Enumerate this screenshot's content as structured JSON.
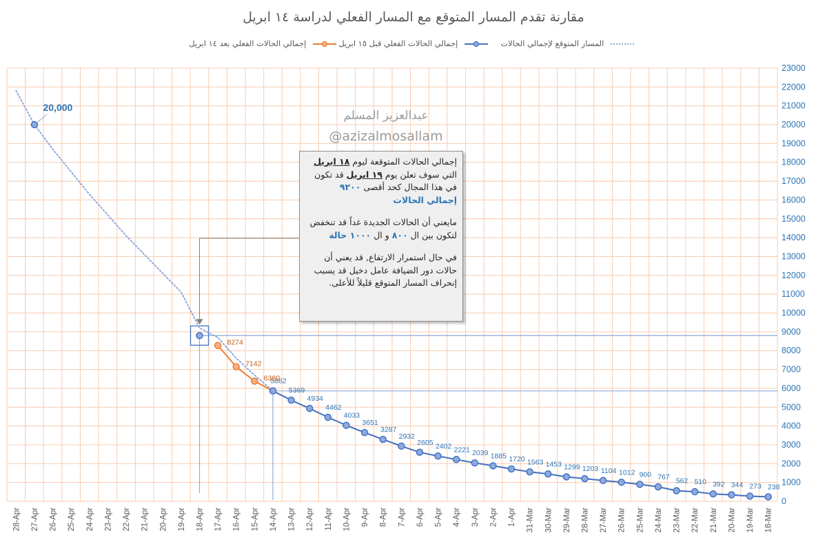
{
  "chart_data": {
    "type": "line",
    "title": "مقارنة تقدم المسار المتوقع مع المسار الفعلي لدراسة ١٤ ابريل",
    "categories": [
      "28-Apr",
      "27-Apr",
      "26-Apr",
      "25-Apr",
      "24-Apr",
      "23-Apr",
      "22-Apr",
      "21-Apr",
      "20-Apr",
      "19-Apr",
      "18-Apr",
      "17-Apr",
      "16-Apr",
      "15-Apr",
      "14-Apr",
      "13-Apr",
      "12-Apr",
      "11-Apr",
      "10-Apr",
      "9-Apr",
      "8-Apr",
      "7-Apr",
      "6-Apr",
      "5-Apr",
      "4-Apr",
      "3-Apr",
      "2-Apr",
      "1-Apr",
      "31-Mar",
      "30-Mar",
      "29-Mar",
      "28-Mar",
      "27-Mar",
      "26-Mar",
      "25-Mar",
      "24-Mar",
      "23-Mar",
      "22-Mar",
      "21-Mar",
      "20-Mar",
      "19-Mar",
      "18-Mar"
    ],
    "ylim": [
      0,
      23000
    ],
    "yticks": [
      0,
      1000,
      2000,
      3000,
      4000,
      5000,
      6000,
      7000,
      8000,
      9000,
      10000,
      11000,
      12000,
      13000,
      14000,
      15000,
      16000,
      17000,
      18000,
      19000,
      20000,
      21000,
      22000,
      23000
    ],
    "grid": true,
    "legend_position": "top",
    "series": [
      {
        "name": "المسار المتوقع لإجمالي الحالات",
        "style": "dotted",
        "color": "#8faadc",
        "values": [
          21800,
          20000,
          18700,
          17500,
          16300,
          15200,
          14100,
          13100,
          12100,
          11100,
          9200,
          8700,
          7600,
          6700,
          5862,
          5369,
          4934,
          4462,
          4033,
          3651,
          3287,
          2932,
          2605,
          2402,
          2221,
          2039,
          1885,
          1720,
          1563,
          1453,
          1299,
          1203,
          1104,
          1012,
          900,
          767,
          562,
          510,
          392,
          344,
          273,
          238
        ]
      },
      {
        "name": "إجمالي الحالات الفعلي قبل ١٥ ابريل",
        "style": "solid-markers",
        "color": "#4472c4",
        "values": [
          null,
          20000,
          null,
          null,
          null,
          null,
          null,
          null,
          null,
          null,
          8800,
          null,
          null,
          null,
          5862,
          5369,
          4934,
          4462,
          4033,
          3651,
          3287,
          2932,
          2605,
          2402,
          2221,
          2039,
          1885,
          1720,
          1563,
          1453,
          1299,
          1203,
          1104,
          1012,
          900,
          767,
          562,
          510,
          392,
          344,
          273,
          238
        ],
        "data_labels": [
          null,
          "20,000",
          null,
          null,
          null,
          null,
          null,
          null,
          null,
          null,
          null,
          null,
          null,
          null,
          "5862",
          "5369",
          "4934",
          "4462",
          "4033",
          "3651",
          "3287",
          "2932",
          "2605",
          "2402",
          "2221",
          "2039",
          "1885",
          "1720",
          "1563",
          "1453",
          "1299",
          "1203",
          "1104",
          "1012",
          "900",
          "767",
          "562",
          "510",
          "392",
          "344",
          "273",
          "238"
        ]
      },
      {
        "name": "إجمالي الحالات الفعلي بعد ١٤ ابريل",
        "style": "solid-markers",
        "color": "#ed7d31",
        "values": [
          null,
          null,
          null,
          null,
          null,
          null,
          null,
          null,
          null,
          null,
          null,
          8274,
          7142,
          6380,
          5862,
          null,
          null,
          null,
          null,
          null,
          null,
          null,
          null,
          null,
          null,
          null,
          null,
          null,
          null,
          null,
          null,
          null,
          null,
          null,
          null,
          null,
          null,
          null,
          null,
          null,
          null,
          null
        ],
        "data_labels": [
          null,
          null,
          null,
          null,
          null,
          null,
          null,
          null,
          null,
          null,
          null,
          "8274",
          "7142",
          "6380",
          null,
          null,
          null,
          null,
          null,
          null,
          null,
          null,
          null,
          null,
          null,
          null,
          null,
          null,
          null,
          null,
          null,
          null,
          null,
          null,
          null,
          null,
          null,
          null,
          null,
          null,
          null,
          null
        ]
      }
    ],
    "reference_lines": [
      8800,
      5862
    ]
  },
  "watermark": {
    "arabic": "عبدالعزيز المسلم",
    "handle": "@azizalmosallam"
  },
  "annotation": {
    "p1_a": "إجمالي الحالات المتوقعة ليوم ",
    "p1_b": "١٨ ابريل",
    "p1_c": " التي سوف تعلن يوم ",
    "p1_d": "١٩ ابريل",
    "p1_e": " قد تكون في هذا المجال كحد أقصى ",
    "p1_f": "٩٢٠٠",
    "p1_g": "إجمالي الحالات",
    "p2_a": "مايعني أن الحالات الجديدة غداً قد تنخفض لتكون بين ال ",
    "p2_b": "٨٠٠",
    "p2_c": " و ال ",
    "p2_d": "١٠٠٠ حالة",
    "p3": "في حال استمرار الارتفاع, قد يعني أن حالات دور الضيافة عامل دخيل قد يسبب إنحراف المسار المتوقع قليلاً للأعلى."
  },
  "colors": {
    "grid_orange": "#f8cbad",
    "axis_blue": "#2e75b6",
    "projection": "#8faadc",
    "actual_blue": "#4472c4",
    "actual_orange": "#ed7d31"
  }
}
